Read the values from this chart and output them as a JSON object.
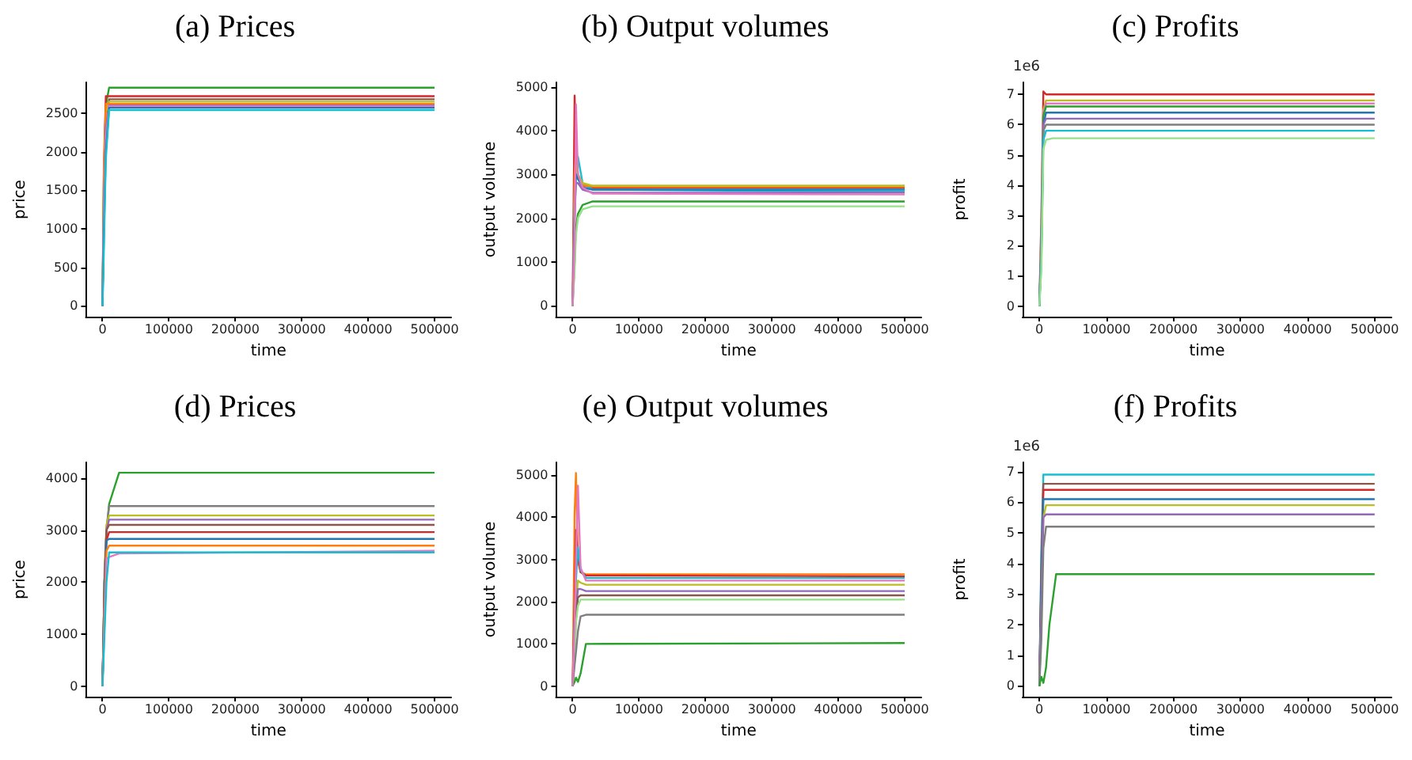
{
  "chart_data": [
    {
      "type": "line",
      "title": "(a) Prices",
      "xlabel": "time",
      "ylabel": "price",
      "xlim": [
        -25000,
        525000
      ],
      "xticks": [
        0,
        100000,
        200000,
        300000,
        400000,
        500000
      ],
      "ylim": [
        -140,
        2900
      ],
      "yticks": [
        0,
        500,
        1000,
        1500,
        2000,
        2500
      ],
      "series": [
        {
          "color": "#2ca02c",
          "x": [
            0,
            2000,
            5000,
            10000,
            500000
          ],
          "values": [
            0,
            1500,
            2600,
            2830,
            2830
          ]
        },
        {
          "color": "#d62728",
          "x": [
            0,
            2000,
            5000,
            10000,
            500000
          ],
          "values": [
            0,
            1800,
            2720,
            2720,
            2720
          ]
        },
        {
          "color": "#8c564b",
          "x": [
            0,
            2000,
            5000,
            10000,
            500000
          ],
          "values": [
            0,
            1400,
            2400,
            2680,
            2680
          ]
        },
        {
          "color": "#bcbd22",
          "x": [
            0,
            2000,
            5000,
            10000,
            500000
          ],
          "values": [
            0,
            1700,
            2500,
            2650,
            2650
          ]
        },
        {
          "color": "#ff7f0e",
          "x": [
            0,
            2000,
            5000,
            10000,
            500000
          ],
          "values": [
            0,
            1600,
            2620,
            2620,
            2620
          ]
        },
        {
          "color": "#9467bd",
          "x": [
            0,
            2000,
            5000,
            10000,
            500000
          ],
          "values": [
            0,
            1200,
            2300,
            2600,
            2600
          ]
        },
        {
          "color": "#e377c2",
          "x": [
            0,
            2000,
            5000,
            10000,
            500000
          ],
          "values": [
            0,
            1300,
            2200,
            2590,
            2590
          ]
        },
        {
          "color": "#1f77b4",
          "x": [
            0,
            2000,
            5000,
            10000,
            500000
          ],
          "values": [
            0,
            900,
            2000,
            2570,
            2570
          ]
        },
        {
          "color": "#17becf",
          "x": [
            0,
            2000,
            5000,
            10000,
            500000
          ],
          "values": [
            0,
            700,
            1900,
            2540,
            2540
          ]
        }
      ]
    },
    {
      "type": "line",
      "title": "(b) Output volumes",
      "xlabel": "time",
      "ylabel": "output volume",
      "xlim": [
        -25000,
        525000
      ],
      "xticks": [
        0,
        100000,
        200000,
        300000,
        400000,
        500000
      ],
      "ylim": [
        -250,
        5100
      ],
      "yticks": [
        0,
        1000,
        2000,
        3000,
        4000,
        5000
      ],
      "series": [
        {
          "color": "#d62728",
          "x": [
            0,
            3000,
            5000,
            8000,
            15000,
            30000,
            500000
          ],
          "values": [
            0,
            4800,
            3500,
            2900,
            2750,
            2700,
            2700
          ]
        },
        {
          "color": "#17becf",
          "x": [
            0,
            3000,
            5000,
            8000,
            15000,
            30000,
            500000
          ],
          "values": [
            0,
            2000,
            3000,
            3400,
            2800,
            2650,
            2600
          ]
        },
        {
          "color": "#ff7f0e",
          "x": [
            0,
            3000,
            5000,
            8000,
            15000,
            30000,
            500000
          ],
          "values": [
            0,
            3000,
            3600,
            3000,
            2750,
            2720,
            2720
          ]
        },
        {
          "color": "#bcbd22",
          "x": [
            0,
            3000,
            5000,
            8000,
            15000,
            30000,
            500000
          ],
          "values": [
            0,
            2500,
            3200,
            3000,
            2800,
            2740,
            2740
          ]
        },
        {
          "color": "#1f77b4",
          "x": [
            0,
            3000,
            5000,
            8000,
            15000,
            30000,
            500000
          ],
          "values": [
            0,
            2200,
            3000,
            2900,
            2700,
            2650,
            2650
          ]
        },
        {
          "color": "#9467bd",
          "x": [
            0,
            3000,
            5000,
            8000,
            15000,
            30000,
            500000
          ],
          "values": [
            0,
            2000,
            2800,
            2800,
            2650,
            2580,
            2580
          ]
        },
        {
          "color": "#2ca02c",
          "x": [
            0,
            3000,
            5000,
            8000,
            15000,
            30000,
            500000
          ],
          "values": [
            0,
            1000,
            1800,
            2100,
            2300,
            2380,
            2380
          ]
        },
        {
          "color": "#98df8a",
          "x": [
            0,
            3000,
            5000,
            8000,
            15000,
            30000,
            500000
          ],
          "values": [
            0,
            800,
            1600,
            2000,
            2200,
            2270,
            2270
          ]
        },
        {
          "color": "#e377c2",
          "x": [
            0,
            3000,
            5000,
            8000,
            15000,
            30000,
            500000
          ],
          "values": [
            0,
            1500,
            4600,
            3000,
            2700,
            2560,
            2540
          ]
        }
      ]
    },
    {
      "type": "line",
      "title": "(c) Profits",
      "xlabel": "time",
      "ylabel": "profit",
      "annotations": [
        "1e6"
      ],
      "xlim": [
        -25000,
        525000
      ],
      "xticks": [
        0,
        100000,
        200000,
        300000,
        400000,
        500000
      ],
      "ylim": [
        -0.35,
        7.4
      ],
      "yticks": [
        0,
        1,
        2,
        3,
        4,
        5,
        6,
        7
      ],
      "series": [
        {
          "color": "#d62728",
          "x": [
            0,
            3000,
            6000,
            10000,
            20000,
            500000
          ],
          "values": [
            0,
            3,
            7.1,
            7.0,
            7.0,
            7.0
          ]
        },
        {
          "color": "#bcbd22",
          "x": [
            0,
            3000,
            6000,
            10000,
            20000,
            500000
          ],
          "values": [
            0,
            2.5,
            6.5,
            6.8,
            6.8,
            6.8
          ]
        },
        {
          "color": "#e377c2",
          "x": [
            0,
            3000,
            6000,
            10000,
            20000,
            500000
          ],
          "values": [
            0,
            2.5,
            6.4,
            6.7,
            6.7,
            6.7
          ]
        },
        {
          "color": "#2ca02c",
          "x": [
            0,
            3000,
            6000,
            10000,
            20000,
            500000
          ],
          "values": [
            0,
            2,
            6.3,
            6.6,
            6.6,
            6.6
          ]
        },
        {
          "color": "#1f77b4",
          "x": [
            0,
            3000,
            6000,
            10000,
            20000,
            500000
          ],
          "values": [
            0,
            2,
            6.0,
            6.4,
            6.4,
            6.4
          ]
        },
        {
          "color": "#9467bd",
          "x": [
            0,
            3000,
            6000,
            10000,
            20000,
            500000
          ],
          "values": [
            0,
            2,
            6.0,
            6.2,
            6.2,
            6.2
          ]
        },
        {
          "color": "#7f7f7f",
          "x": [
            0,
            3000,
            6000,
            10000,
            20000,
            500000
          ],
          "values": [
            0,
            1.8,
            5.8,
            6.0,
            6.0,
            6.0
          ]
        },
        {
          "color": "#17becf",
          "x": [
            0,
            3000,
            6000,
            10000,
            20000,
            500000
          ],
          "values": [
            0,
            1.5,
            5.5,
            5.8,
            5.8,
            5.8
          ]
        },
        {
          "color": "#98df8a",
          "x": [
            0,
            3000,
            6000,
            10000,
            20000,
            500000
          ],
          "values": [
            0,
            1.2,
            5.2,
            5.5,
            5.55,
            5.55
          ]
        }
      ]
    },
    {
      "type": "line",
      "title": "(d) Prices",
      "xlabel": "time",
      "ylabel": "price",
      "xlim": [
        -25000,
        525000
      ],
      "xticks": [
        0,
        100000,
        200000,
        300000,
        400000,
        500000
      ],
      "ylim": [
        -200,
        4300
      ],
      "yticks": [
        0,
        1000,
        2000,
        3000,
        4000
      ],
      "series": [
        {
          "color": "#2ca02c",
          "x": [
            0,
            3000,
            6000,
            10000,
            25000,
            500000
          ],
          "values": [
            0,
            2000,
            3000,
            3500,
            4100,
            4100
          ]
        },
        {
          "color": "#7f7f7f",
          "x": [
            0,
            3000,
            6000,
            10000,
            25000,
            500000
          ],
          "values": [
            0,
            2000,
            3000,
            3460,
            3460,
            3460
          ]
        },
        {
          "color": "#bcbd22",
          "x": [
            0,
            3000,
            6000,
            10000,
            25000,
            500000
          ],
          "values": [
            0,
            2200,
            3100,
            3280,
            3280,
            3280
          ]
        },
        {
          "color": "#9467bd",
          "x": [
            0,
            3000,
            6000,
            10000,
            25000,
            500000
          ],
          "values": [
            0,
            2000,
            3000,
            3200,
            3200,
            3200
          ]
        },
        {
          "color": "#8c564b",
          "x": [
            0,
            3000,
            6000,
            10000,
            25000,
            500000
          ],
          "values": [
            0,
            2000,
            3000,
            3100,
            3100,
            3100
          ]
        },
        {
          "color": "#d62728",
          "x": [
            0,
            3000,
            6000,
            10000,
            25000,
            500000
          ],
          "values": [
            0,
            1800,
            2800,
            2960,
            2960,
            2960
          ]
        },
        {
          "color": "#1f77b4",
          "x": [
            0,
            3000,
            6000,
            10000,
            25000,
            500000
          ],
          "values": [
            0,
            1800,
            2800,
            2830,
            2830,
            2830
          ]
        },
        {
          "color": "#ff7f0e",
          "x": [
            0,
            3000,
            6000,
            10000,
            25000,
            500000
          ],
          "values": [
            0,
            1500,
            2600,
            2700,
            2700,
            2700
          ]
        },
        {
          "color": "#e377c2",
          "x": [
            0,
            3000,
            6000,
            10000,
            25000,
            500000
          ],
          "values": [
            0,
            1200,
            2450,
            2480,
            2550,
            2600
          ]
        },
        {
          "color": "#17becf",
          "x": [
            0,
            3000,
            6000,
            10000,
            25000,
            500000
          ],
          "values": [
            0,
            1000,
            2000,
            2570,
            2570,
            2570
          ]
        }
      ]
    },
    {
      "type": "line",
      "title": "(e) Output volumes",
      "xlabel": "time",
      "ylabel": "output volume",
      "xlim": [
        -25000,
        525000
      ],
      "xticks": [
        0,
        100000,
        200000,
        300000,
        400000,
        500000
      ],
      "ylim": [
        -250,
        5300
      ],
      "yticks": [
        0,
        1000,
        2000,
        3000,
        4000,
        5000
      ],
      "series": [
        {
          "color": "#ff7f0e",
          "x": [
            0,
            3000,
            5000,
            8000,
            12000,
            20000,
            500000
          ],
          "values": [
            0,
            4100,
            5050,
            3000,
            2700,
            2650,
            2650
          ]
        },
        {
          "color": "#d62728",
          "x": [
            0,
            3000,
            5000,
            8000,
            12000,
            20000,
            500000
          ],
          "values": [
            0,
            2000,
            3700,
            3000,
            2700,
            2620,
            2600
          ]
        },
        {
          "color": "#17becf",
          "x": [
            0,
            3000,
            5000,
            8000,
            12000,
            20000,
            500000
          ],
          "values": [
            0,
            1500,
            2500,
            3300,
            2750,
            2560,
            2560
          ]
        },
        {
          "color": "#bcbd22",
          "x": [
            0,
            3000,
            5000,
            8000,
            12000,
            20000,
            500000
          ],
          "values": [
            0,
            1000,
            2000,
            2500,
            2450,
            2400,
            2400
          ]
        },
        {
          "color": "#9467bd",
          "x": [
            0,
            3000,
            5000,
            8000,
            12000,
            20000,
            500000
          ],
          "values": [
            0,
            1000,
            1800,
            2300,
            2300,
            2250,
            2250
          ]
        },
        {
          "color": "#8c564b",
          "x": [
            0,
            3000,
            5000,
            8000,
            12000,
            20000,
            500000
          ],
          "values": [
            0,
            800,
            1600,
            2100,
            2150,
            2150,
            2150
          ]
        },
        {
          "color": "#98df8a",
          "x": [
            0,
            3000,
            5000,
            8000,
            12000,
            20000,
            500000
          ],
          "values": [
            0,
            600,
            1500,
            1900,
            2050,
            2050,
            2050
          ]
        },
        {
          "color": "#7f7f7f",
          "x": [
            0,
            3000,
            5000,
            8000,
            12000,
            20000,
            500000
          ],
          "values": [
            0,
            500,
            800,
            1300,
            1650,
            1690,
            1690
          ]
        },
        {
          "color": "#2ca02c",
          "x": [
            0,
            3000,
            5000,
            8000,
            12000,
            20000,
            500000
          ],
          "values": [
            0,
            100,
            200,
            100,
            300,
            1000,
            1020
          ]
        },
        {
          "color": "#e377c2",
          "x": [
            0,
            3000,
            5000,
            8000,
            12000,
            20000,
            500000
          ],
          "values": [
            0,
            1500,
            3000,
            4750,
            2800,
            2500,
            2500
          ]
        }
      ]
    },
    {
      "type": "line",
      "title": "(f) Profits",
      "xlabel": "time",
      "ylabel": "profit",
      "annotations": [
        "1e6"
      ],
      "xlim": [
        -25000,
        525000
      ],
      "xticks": [
        0,
        100000,
        200000,
        300000,
        400000,
        500000
      ],
      "ylim": [
        -0.35,
        7.3
      ],
      "yticks": [
        0,
        1,
        2,
        3,
        4,
        5,
        6,
        7
      ],
      "series": [
        {
          "color": "#17becf",
          "x": [
            0,
            3000,
            6000,
            10000,
            15000,
            25000,
            500000
          ],
          "values": [
            0,
            4.5,
            6.9,
            6.9,
            6.9,
            6.9,
            6.9
          ]
        },
        {
          "color": "#8c564b",
          "x": [
            0,
            3000,
            6000,
            10000,
            15000,
            25000,
            500000
          ],
          "values": [
            0,
            4,
            6.6,
            6.6,
            6.6,
            6.6,
            6.6
          ]
        },
        {
          "color": "#d62728",
          "x": [
            0,
            3000,
            6000,
            10000,
            15000,
            25000,
            500000
          ],
          "values": [
            0,
            3.5,
            6.4,
            6.4,
            6.4,
            6.4,
            6.4
          ]
        },
        {
          "color": "#1f77b4",
          "x": [
            0,
            3000,
            6000,
            10000,
            15000,
            25000,
            500000
          ],
          "values": [
            0,
            3.5,
            6.1,
            6.1,
            6.1,
            6.1,
            6.1
          ]
        },
        {
          "color": "#bcbd22",
          "x": [
            0,
            3000,
            6000,
            10000,
            15000,
            25000,
            500000
          ],
          "values": [
            0,
            2.5,
            5.5,
            5.9,
            5.9,
            5.9,
            5.9
          ]
        },
        {
          "color": "#9467bd",
          "x": [
            0,
            3000,
            6000,
            10000,
            15000,
            25000,
            500000
          ],
          "values": [
            0,
            2.5,
            5.5,
            5.6,
            5.6,
            5.6,
            5.6
          ]
        },
        {
          "color": "#7f7f7f",
          "x": [
            0,
            3000,
            6000,
            10000,
            15000,
            25000,
            500000
          ],
          "values": [
            0,
            1.5,
            4.5,
            5.2,
            5.2,
            5.2,
            5.2
          ]
        },
        {
          "color": "#2ca02c",
          "x": [
            0,
            3000,
            6000,
            10000,
            15000,
            25000,
            500000
          ],
          "values": [
            0,
            0.3,
            0.1,
            0.6,
            2.0,
            3.65,
            3.65
          ]
        }
      ]
    }
  ]
}
